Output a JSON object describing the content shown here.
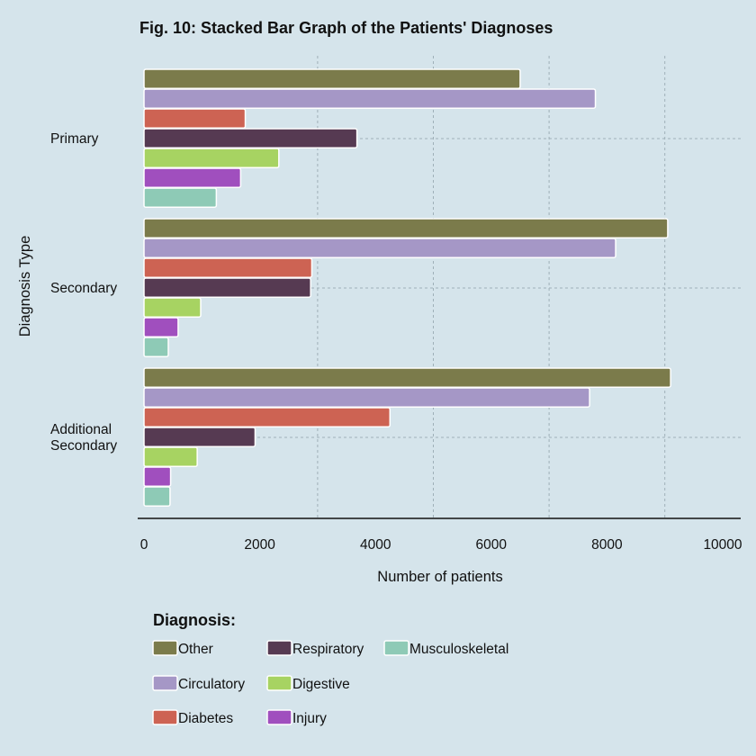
{
  "chart_data": {
    "type": "bar",
    "orientation": "horizontal",
    "title": "Fig. 10: Stacked Bar Graph of the Patients' Diagnoses",
    "xlabel": "Number of patients",
    "ylabel": "Diagnosis Type",
    "xlim": [
      0,
      10000
    ],
    "xticks": [
      "0",
      "2000",
      "4000",
      "6000",
      "8000",
      "10000"
    ],
    "xtick_values": [
      0,
      2000,
      4000,
      6000,
      8000,
      10000
    ],
    "grid": true,
    "categories": [
      {
        "lines": [
          "Primary"
        ]
      },
      {
        "lines": [
          "Secondary"
        ]
      },
      {
        "lines": [
          "Additional",
          "Secondary"
        ]
      }
    ],
    "series": [
      {
        "name": "Other",
        "color": "#7b7b4b",
        "values": [
          6500,
          9050,
          9100
        ]
      },
      {
        "name": "Circulatory",
        "color": "#a597c6",
        "values": [
          7800,
          8150,
          7700
        ]
      },
      {
        "name": "Diabetes",
        "color": "#cd6353",
        "values": [
          1750,
          2900,
          4250
        ]
      },
      {
        "name": "Respiratory",
        "color": "#563a52",
        "values": [
          3680,
          2880,
          1920
        ]
      },
      {
        "name": "Digestive",
        "color": "#a7d362",
        "values": [
          2330,
          980,
          920
        ]
      },
      {
        "name": "Injury",
        "color": "#a04fbe",
        "values": [
          1670,
          590,
          460
        ]
      },
      {
        "name": "Musculoskeletal",
        "color": "#8ecab6",
        "values": [
          1250,
          420,
          450
        ]
      }
    ],
    "legend": {
      "title": "Diagnosis:",
      "placement": "bottom",
      "columns": [
        [
          "Other",
          "Circulatory",
          "Diabetes"
        ],
        [
          "Respiratory",
          "Digestive",
          "Injury"
        ],
        [
          "Musculoskeletal"
        ]
      ]
    }
  }
}
